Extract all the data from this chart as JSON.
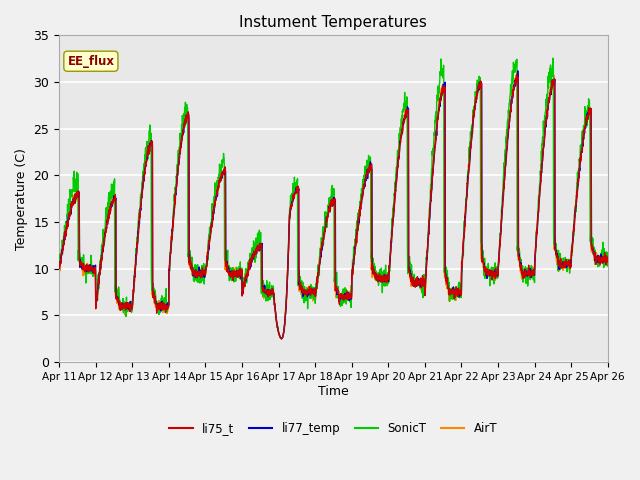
{
  "title": "Instument Temperatures",
  "xlabel": "Time",
  "ylabel": "Temperature (C)",
  "ylim": [
    0,
    35
  ],
  "x_tick_labels": [
    "Apr 11",
    "Apr 12",
    "Apr 13",
    "Apr 14",
    "Apr 15",
    "Apr 16",
    "Apr 17",
    "Apr 18",
    "Apr 19",
    "Apr 20",
    "Apr 21",
    "Apr 22",
    "Apr 23",
    "Apr 24",
    "Apr 25",
    "Apr 26"
  ],
  "annotation_text": "EE_flux",
  "colors": {
    "li75_t": "#cc0000",
    "li77_temp": "#0000cc",
    "SonicT": "#00cc00",
    "AirT": "#ff8800"
  },
  "legend_labels": [
    "li75_t",
    "li77_temp",
    "SonicT",
    "AirT"
  ],
  "plot_bg_color": "#e8e8e8",
  "grid_color": "#ffffff",
  "figsize": [
    6.4,
    4.8
  ],
  "dpi": 100,
  "day_peaks": [
    18,
    17.5,
    23.5,
    26.5,
    20.5,
    12.5,
    18.5,
    17.5,
    21,
    27,
    29.5,
    30,
    30.5,
    30,
    27
  ],
  "day_mins": [
    10,
    6,
    6,
    9.5,
    9.5,
    7.5,
    7.5,
    7,
    9,
    8.5,
    7.5,
    9.5,
    9.5,
    10.5,
    11
  ],
  "sonic_extra": [
    1.5,
    1.0,
    0.5,
    0.5,
    1.0,
    0.5,
    0.5,
    0.5,
    0.5,
    1.0,
    2.0,
    0.0,
    1.5,
    1.5,
    0.5
  ]
}
